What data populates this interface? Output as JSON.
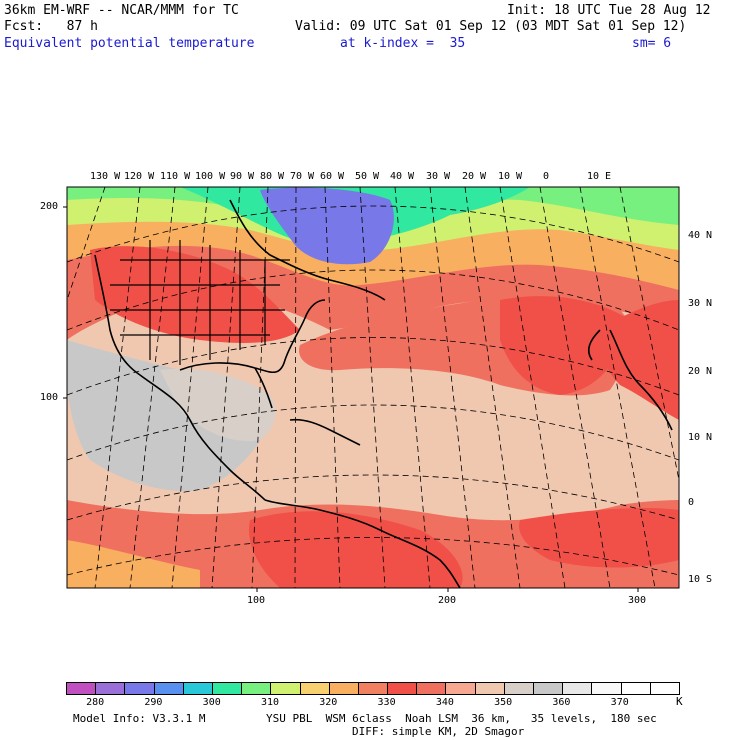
{
  "header": {
    "model": "36km EM-WRF -- NCAR/MMM for TC",
    "init": "Init: 18 UTC Tue 28 Aug 12",
    "fcst": "Fcst:   87 h",
    "valid": "Valid: 09 UTC Sat 01 Sep 12 (03 MDT Sat 01 Sep 12)",
    "field": "Equivalent potential temperature",
    "level": "at k-index =  35",
    "smooth": "sm= 6"
  },
  "map": {
    "lon_labels": [
      "130 W",
      "120 W",
      "110 W",
      "100 W",
      "90 W",
      "80 W",
      "70 W",
      "60 W",
      "50 W",
      "40 W",
      "30 W",
      "20 W",
      "10 W",
      "0",
      "10 E"
    ],
    "lat_labels": [
      "40 N",
      "30 N",
      "20 N",
      "10 N",
      "0",
      "10 S"
    ],
    "grid_y_labels": [
      "200",
      "100"
    ],
    "grid_x_labels": [
      "100",
      "200",
      "300"
    ]
  },
  "colorbar": {
    "colors": [
      "#c050c0",
      "#9a70d8",
      "#7878e8",
      "#5890f0",
      "#28c8d8",
      "#30e8a0",
      "#78f080",
      "#d0f070",
      "#f8d070",
      "#f8b060",
      "#f08060",
      "#f05048",
      "#f07060",
      "#f8a890",
      "#f0c8b0",
      "#d8d0c8",
      "#c8c8c8",
      "#e8e8e8",
      "#f8f8f8",
      "#ffffff",
      "#ffffff"
    ],
    "labels": [
      "280",
      "290",
      "300",
      "310",
      "320",
      "330",
      "340",
      "350",
      "360",
      "370"
    ],
    "unit": "K"
  },
  "footer": {
    "model_info": "Model Info: V3.3.1 M",
    "physics": "YSU PBL  WSM 6class  Noah LSM  36 km,   35 levels,  180 sec",
    "diff": "DIFF: simple KM, 2D Smagor"
  }
}
